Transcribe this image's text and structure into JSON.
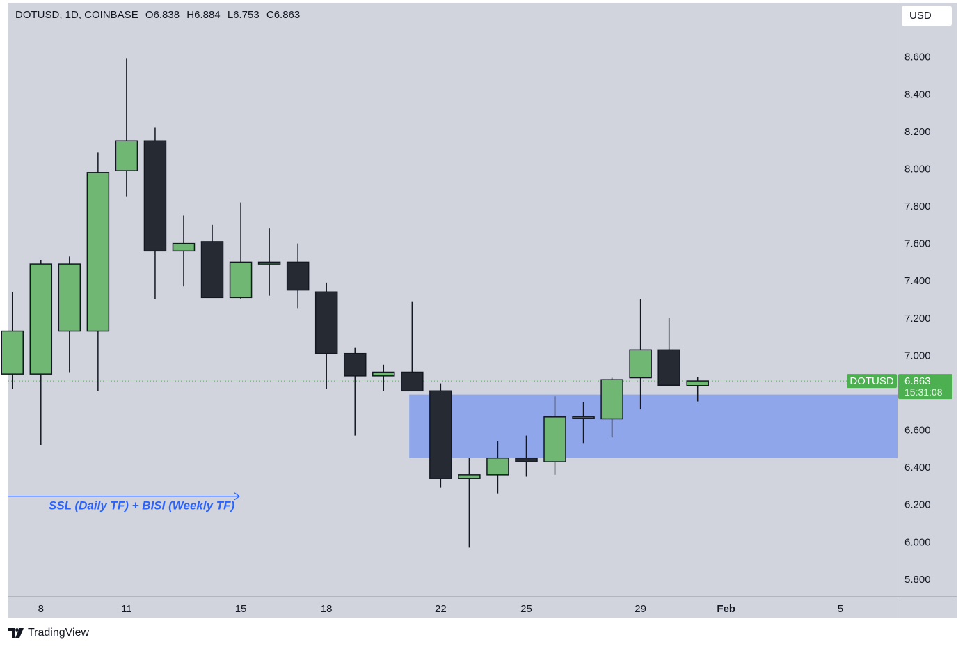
{
  "header": {
    "symbol": "DOTUSD, 1D, COINBASE",
    "open": "O6.838",
    "high": "H6.884",
    "low": "L6.753",
    "close": "C6.863"
  },
  "currency_button": "USD",
  "footer": {
    "brand": "TradingView"
  },
  "colors": {
    "background": "#d1d4dc",
    "up_candle": "#6fb773",
    "down_candle": "#262a33",
    "zone": "#8fa6eb",
    "price_label": "#4caf50",
    "annotation": "#2962ff"
  },
  "price_tag": {
    "symbol": "DOTUSD",
    "price": "6.863",
    "countdown": "15:31:08"
  },
  "annotation": "SSL (Daily TF) + BISI (Weekly TF)",
  "chart_data": {
    "type": "candlestick",
    "y_ticks": [
      "8.600",
      "8.400",
      "8.200",
      "8.000",
      "7.800",
      "7.600",
      "7.400",
      "7.200",
      "7.000",
      "6.800",
      "6.600",
      "6.400",
      "6.200",
      "6.000",
      "5.800"
    ],
    "x_ticks": [
      {
        "label": "8",
        "day": 8
      },
      {
        "label": "11",
        "day": 11
      },
      {
        "label": "15",
        "day": 15
      },
      {
        "label": "18",
        "day": 18
      },
      {
        "label": "22",
        "day": 22
      },
      {
        "label": "25",
        "day": 25
      },
      {
        "label": "29",
        "day": 29
      },
      {
        "label": "Feb",
        "day": 32
      },
      {
        "label": "5",
        "day": 36
      }
    ],
    "ylim": [
      5.71,
      8.89
    ],
    "xlim": [
      6.86,
      38.0
    ],
    "zone": {
      "from_day": 20.9,
      "low": 6.45,
      "high": 6.79
    },
    "annotation_arrow": {
      "from_day": 6.86,
      "to_day": 14.95,
      "price": 6.2
    },
    "current_price": 6.863,
    "candles": [
      {
        "day": 7,
        "open": 6.9,
        "high": 7.34,
        "low": 6.82,
        "close": 7.13
      },
      {
        "day": 8,
        "open": 6.9,
        "high": 7.51,
        "low": 6.52,
        "close": 7.49
      },
      {
        "day": 9,
        "open": 7.13,
        "high": 7.53,
        "low": 6.91,
        "close": 7.49
      },
      {
        "day": 10,
        "open": 7.13,
        "high": 8.09,
        "low": 6.81,
        "close": 7.98
      },
      {
        "day": 11,
        "open": 7.99,
        "high": 8.59,
        "low": 7.85,
        "close": 8.15
      },
      {
        "day": 12,
        "open": 8.15,
        "high": 8.22,
        "low": 7.3,
        "close": 7.56
      },
      {
        "day": 13,
        "open": 7.56,
        "high": 7.75,
        "low": 7.37,
        "close": 7.6
      },
      {
        "day": 14,
        "open": 7.61,
        "high": 7.7,
        "low": 7.31,
        "close": 7.31
      },
      {
        "day": 15,
        "open": 7.31,
        "high": 7.82,
        "low": 7.3,
        "close": 7.5
      },
      {
        "day": 16,
        "open": 7.49,
        "high": 7.68,
        "low": 7.32,
        "close": 7.5
      },
      {
        "day": 17,
        "open": 7.5,
        "high": 7.6,
        "low": 7.25,
        "close": 7.35
      },
      {
        "day": 18,
        "open": 7.34,
        "high": 7.39,
        "low": 6.82,
        "close": 7.01
      },
      {
        "day": 19,
        "open": 7.01,
        "high": 7.04,
        "low": 6.57,
        "close": 6.89
      },
      {
        "day": 20,
        "open": 6.89,
        "high": 6.95,
        "low": 6.81,
        "close": 6.91
      },
      {
        "day": 21,
        "open": 6.91,
        "high": 7.29,
        "low": 6.82,
        "close": 6.81
      },
      {
        "day": 22,
        "open": 6.81,
        "high": 6.85,
        "low": 6.29,
        "close": 6.34
      },
      {
        "day": 23,
        "open": 6.34,
        "high": 6.45,
        "low": 5.97,
        "close": 6.36
      },
      {
        "day": 24,
        "open": 6.36,
        "high": 6.54,
        "low": 6.26,
        "close": 6.45
      },
      {
        "day": 25,
        "open": 6.45,
        "high": 6.57,
        "low": 6.35,
        "close": 6.43
      },
      {
        "day": 26,
        "open": 6.43,
        "high": 6.78,
        "low": 6.36,
        "close": 6.67
      },
      {
        "day": 27,
        "open": 6.67,
        "high": 6.75,
        "low": 6.53,
        "close": 6.67
      },
      {
        "day": 28,
        "open": 6.66,
        "high": 6.88,
        "low": 6.56,
        "close": 6.87
      },
      {
        "day": 29,
        "open": 6.88,
        "high": 7.3,
        "low": 6.71,
        "close": 7.03
      },
      {
        "day": 30,
        "open": 7.03,
        "high": 7.2,
        "low": 6.84,
        "close": 6.84
      },
      {
        "day": 31,
        "open": 6.838,
        "high": 6.884,
        "low": 6.753,
        "close": 6.863
      }
    ]
  }
}
